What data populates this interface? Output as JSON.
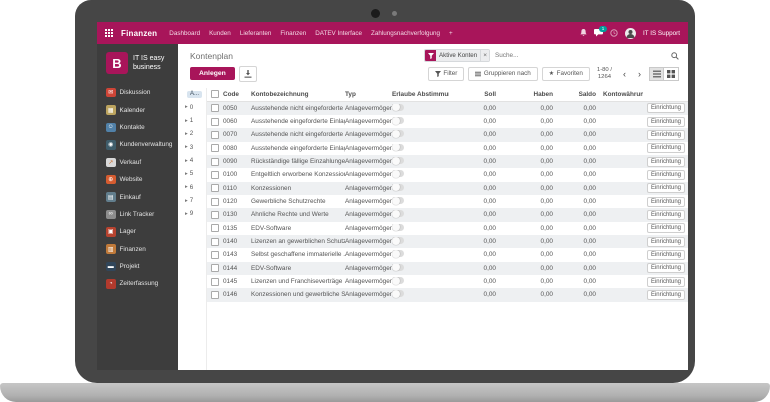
{
  "theme": {
    "accent": "#a8155a",
    "badge_teal": "#00a09d",
    "sidebar_bg": "#3d3d3d",
    "bezel": "#464646",
    "row_stripe": "#eef0f2",
    "hierarchy_header_bg": "#d8e4ef"
  },
  "topnav": {
    "app_name": "Finanzen",
    "menu": [
      "Dashboard",
      "Kunden",
      "Lieferanten",
      "Finanzen",
      "DATEV Interface",
      "Zahlungsnachverfolgung",
      "+"
    ],
    "chat_badge": "1",
    "user_name": "IT IS Support"
  },
  "sidebar": {
    "logo_letter": "B",
    "brand_line1": "IT IS easy",
    "brand_line2": "business",
    "items": [
      {
        "id": "diskussion",
        "label": "Diskussion",
        "color": "#ce4537",
        "glyph": "✉"
      },
      {
        "id": "kalender",
        "label": "Kalender",
        "color": "#bca45f",
        "glyph": "▦"
      },
      {
        "id": "kontakte",
        "label": "Kontakte",
        "color": "#5181a8",
        "glyph": "☺"
      },
      {
        "id": "kundenverwaltung",
        "label": "Kundenverwaltung",
        "color": "#3f5d6b",
        "glyph": "◉"
      },
      {
        "id": "verkauf",
        "label": "Verkauf",
        "color": "#d8d8d8",
        "glyph": "↗",
        "glyph_color": "#c96a2a"
      },
      {
        "id": "website",
        "label": "Website",
        "color": "#d65c30",
        "glyph": "⊕"
      },
      {
        "id": "einkauf",
        "label": "Einkauf",
        "color": "#627e8d",
        "glyph": "▤"
      },
      {
        "id": "link-tracker",
        "label": "Link Tracker",
        "color": "#8d8d8d",
        "glyph": "∞"
      },
      {
        "id": "lager",
        "label": "Lager",
        "color": "#b7432f",
        "glyph": "▣"
      },
      {
        "id": "finanzen",
        "label": "Finanzen",
        "color": "#c07a3a",
        "glyph": "▥"
      },
      {
        "id": "projekt",
        "label": "Projekt",
        "color": "#31465a",
        "glyph": "▬"
      },
      {
        "id": "zeiterfassung",
        "label": "Zeiterfassung",
        "color": "#b23a2d",
        "glyph": "◔"
      }
    ]
  },
  "controls": {
    "title": "Kontenplan",
    "create_label": "Anlegen",
    "facet_label": "Aktive Konten",
    "facet_remove": "×",
    "search_placeholder": "Suche...",
    "filter_label": "Filter",
    "groupby_label": "Gruppieren nach",
    "favorites_label": "Favoriten",
    "pager_range": "1-80 /",
    "pager_total": "1264"
  },
  "icons": {
    "expand": "▸",
    "prev": "‹",
    "next": "›",
    "star": "★"
  },
  "table": {
    "hierarchy_header": "A...",
    "hierarchy": [
      "0",
      "1",
      "2",
      "3",
      "4",
      "5",
      "6",
      "7",
      "9"
    ],
    "headers": [
      "Code",
      "Kontobezeichnung",
      "Typ",
      "Erlaube Abstimmung",
      "Soll",
      "Haben",
      "Saldo",
      "Kontowährung"
    ],
    "rows": [
      {
        "code": "0050",
        "name": "Ausstehende nicht eingeforderte ...",
        "typ": "Anlagevermögen",
        "soll": "0,00",
        "haben": "0,00",
        "saldo": "0,00",
        "currency": "",
        "action": "Einrichtung"
      },
      {
        "code": "0060",
        "name": "Ausstehende eingeforderte Einlag...",
        "typ": "Anlagevermögen",
        "soll": "0,00",
        "haben": "0,00",
        "saldo": "0,00",
        "currency": "",
        "action": "Einrichtung"
      },
      {
        "code": "0070",
        "name": "Ausstehende nicht eingeforderte ...",
        "typ": "Anlagevermögen",
        "soll": "0,00",
        "haben": "0,00",
        "saldo": "0,00",
        "currency": "",
        "action": "Einrichtung"
      },
      {
        "code": "0080",
        "name": "Ausstehende eingeforderte Einlag...",
        "typ": "Anlagevermögen",
        "soll": "0,00",
        "haben": "0,00",
        "saldo": "0,00",
        "currency": "",
        "action": "Einrichtung"
      },
      {
        "code": "0090",
        "name": "Rückständige fällige Einzahlunge...",
        "typ": "Anlagevermögen",
        "soll": "0,00",
        "haben": "0,00",
        "saldo": "0,00",
        "currency": "",
        "action": "Einrichtung"
      },
      {
        "code": "0100",
        "name": "Entgeltlich erworbene Konzession...",
        "typ": "Anlagevermögen",
        "soll": "0,00",
        "haben": "0,00",
        "saldo": "0,00",
        "currency": "",
        "action": "Einrichtung"
      },
      {
        "code": "0110",
        "name": "Konzessionen",
        "typ": "Anlagevermögen",
        "soll": "0,00",
        "haben": "0,00",
        "saldo": "0,00",
        "currency": "",
        "action": "Einrichtung"
      },
      {
        "code": "0120",
        "name": "Gewerbliche Schutzrechte",
        "typ": "Anlagevermögen",
        "soll": "0,00",
        "haben": "0,00",
        "saldo": "0,00",
        "currency": "",
        "action": "Einrichtung"
      },
      {
        "code": "0130",
        "name": "Ähnliche Rechte und Werte",
        "typ": "Anlagevermögen",
        "soll": "0,00",
        "haben": "0,00",
        "saldo": "0,00",
        "currency": "",
        "action": "Einrichtung"
      },
      {
        "code": "0135",
        "name": "EDV-Software",
        "typ": "Anlagevermögen",
        "soll": "0,00",
        "haben": "0,00",
        "saldo": "0,00",
        "currency": "",
        "action": "Einrichtung"
      },
      {
        "code": "0140",
        "name": "Lizenzen an gewerblichen Schutzr...",
        "typ": "Anlagevermögen",
        "soll": "0,00",
        "haben": "0,00",
        "saldo": "0,00",
        "currency": "",
        "action": "Einrichtung"
      },
      {
        "code": "0143",
        "name": "Selbst geschaffene immaterielle ...",
        "typ": "Anlagevermögen",
        "soll": "0,00",
        "haben": "0,00",
        "saldo": "0,00",
        "currency": "",
        "action": "Einrichtung"
      },
      {
        "code": "0144",
        "name": "EDV-Software",
        "typ": "Anlagevermögen",
        "soll": "0,00",
        "haben": "0,00",
        "saldo": "0,00",
        "currency": "",
        "action": "Einrichtung"
      },
      {
        "code": "0145",
        "name": "Lizenzen und Franchiseverträge",
        "typ": "Anlagevermögen",
        "soll": "0,00",
        "haben": "0,00",
        "saldo": "0,00",
        "currency": "",
        "action": "Einrichtung"
      },
      {
        "code": "0146",
        "name": "Konzessionen und gewerbliche S...",
        "typ": "Anlagevermögen",
        "soll": "0,00",
        "haben": "0,00",
        "saldo": "0,00",
        "currency": "",
        "action": "Einrichtung"
      }
    ]
  }
}
